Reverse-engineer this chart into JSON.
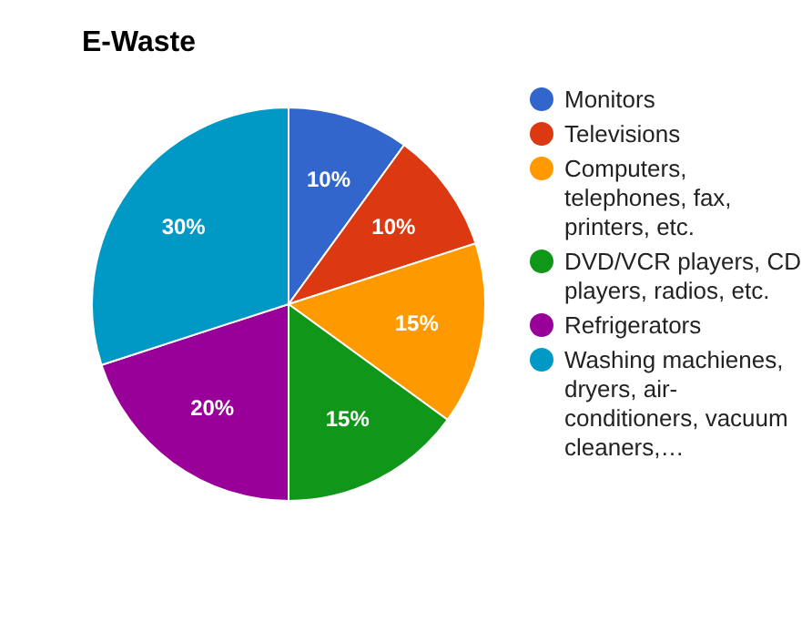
{
  "chart_data": {
    "type": "pie",
    "title": "E-Waste",
    "categories": [
      "Monitors",
      "Televisions",
      "Computers, telephones, fax, printers, etc.",
      "DVD/VCR players, CD players, radios, etc.",
      "Refrigerators",
      "Washing machienes, dryers, air-conditioners, vacuum cleaners,…"
    ],
    "values": [
      10,
      10,
      15,
      15,
      20,
      30
    ],
    "colors": [
      "#3366cc",
      "#dc3912",
      "#ff9900",
      "#109618",
      "#990099",
      "#0099c6"
    ],
    "value_labels": [
      "10%",
      "10%",
      "15%",
      "15%",
      "20%",
      "30%"
    ],
    "legend": "right"
  }
}
